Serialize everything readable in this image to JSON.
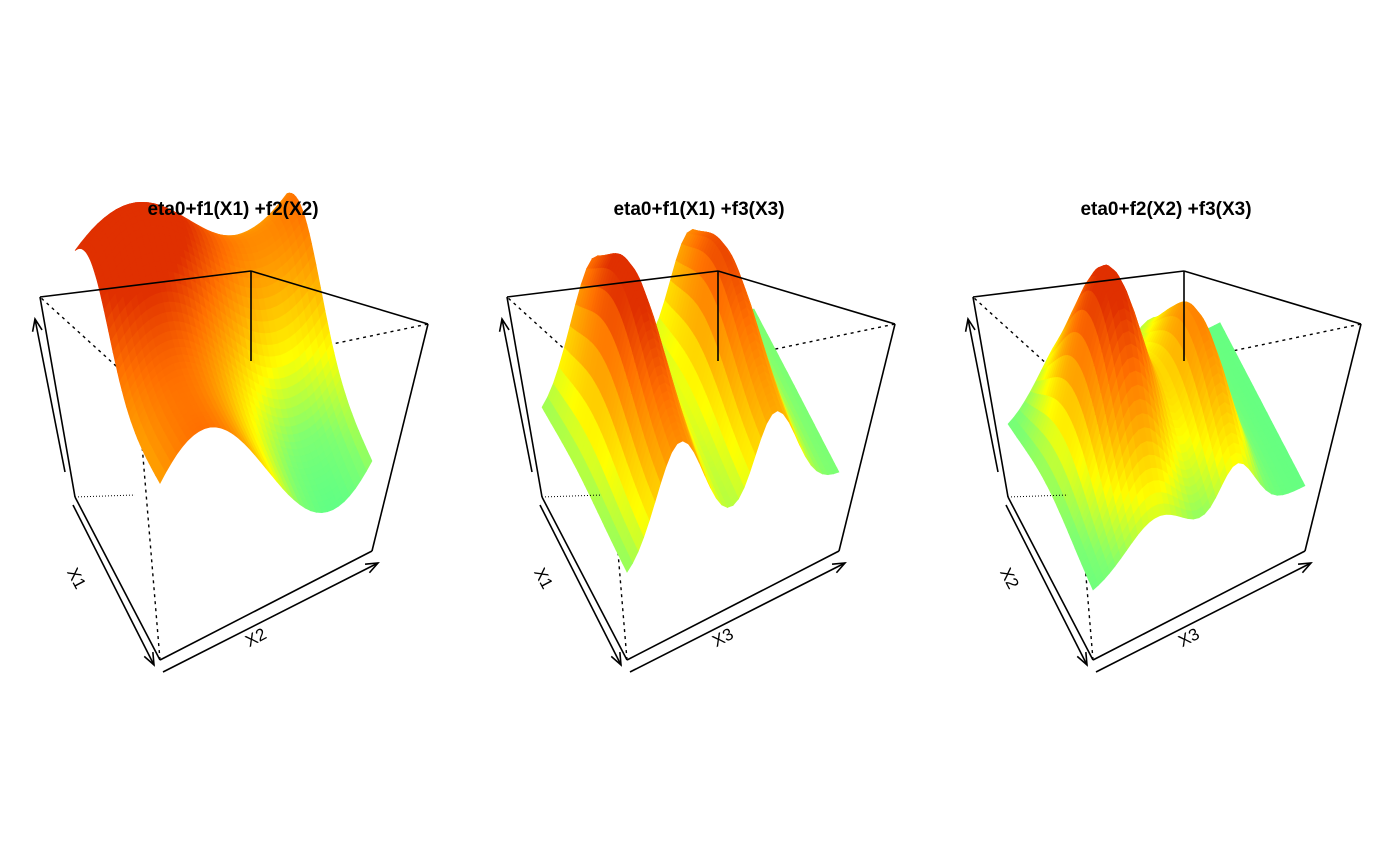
{
  "chart_data": [
    {
      "type": "surface3d",
      "title": "eta0+f1(X1) +f2(X2)",
      "xlabel": "X1",
      "ylabel": "X2",
      "zlabel": "",
      "colormap": [
        "#40ff9a",
        "#80ff70",
        "#ffff00",
        "#ffb000",
        "#ff7000",
        "#e03000"
      ],
      "surface_description": "ridge shaped surface with high orange peak in back-left corner along X1, sinusoidal ridge along X2"
    },
    {
      "type": "surface3d",
      "title": "eta0+f1(X1) +f3(X3)",
      "xlabel": "X1",
      "ylabel": "X3",
      "zlabel": "",
      "colormap": [
        "#40ff9a",
        "#80ff70",
        "#ffff00",
        "#ffb000",
        "#ff7000",
        "#e03000"
      ],
      "surface_description": "two peaks along X3 with valley, high orange region at center"
    },
    {
      "type": "surface3d",
      "title": "eta0+f2(X2) +f3(X3)",
      "xlabel": "X2",
      "ylabel": "X3",
      "zlabel": "",
      "colormap": [
        "#40ff9a",
        "#80ff70",
        "#ffff00",
        "#ffb000",
        "#ff7000",
        "#e03000"
      ],
      "surface_description": "large central orange hump with secondary orange peak on right"
    }
  ]
}
